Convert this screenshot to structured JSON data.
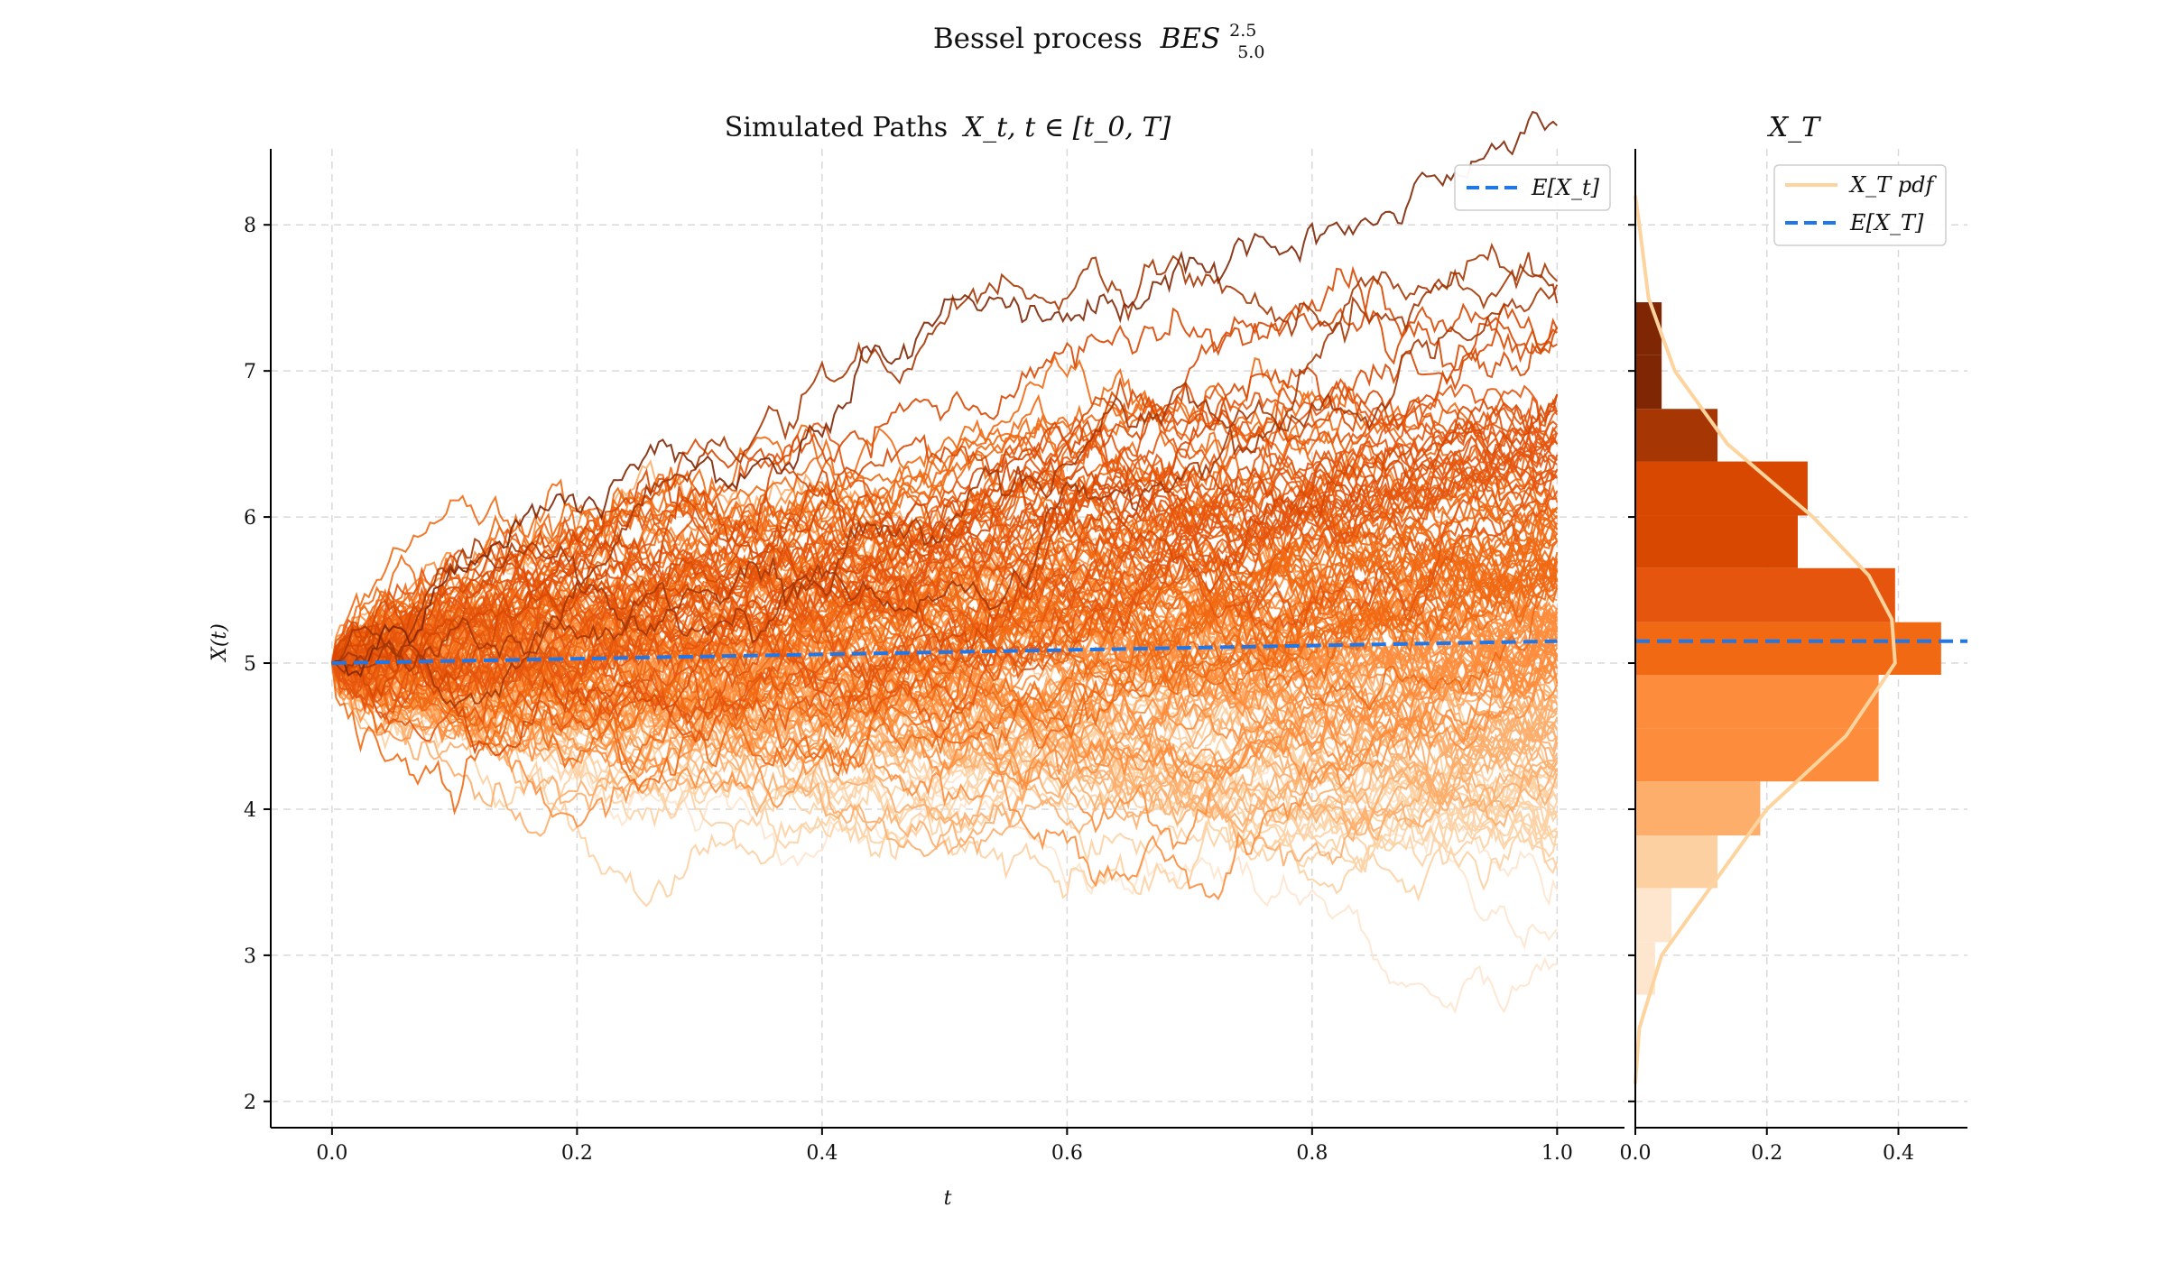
{
  "figure": {
    "suptitle_prefix": "Bessel process",
    "suptitle_math": "BES",
    "suptitle_sup": "2.5",
    "suptitle_sub": "5.0"
  },
  "colors": {
    "mean_line": "#1f77e8",
    "pdf_line": "#fdd49e",
    "grid": "#d9d9d9",
    "path_palette": [
      "#fee6ce",
      "#fdd0a2",
      "#fdae6b",
      "#fd8d3c",
      "#f16913",
      "#e6550d",
      "#d94801",
      "#a63603",
      "#7f2704"
    ]
  },
  "chart_data": [
    {
      "type": "line",
      "panel": "paths",
      "title_text": "Simulated Paths",
      "title_math": "X_t, t ∈ [t_0, T]",
      "xlabel": "t",
      "ylabel": "X(t)",
      "xlim": [
        -0.05,
        1.055
      ],
      "ylim": [
        1.82,
        8.52
      ],
      "xticks": [
        "0.0",
        "0.2",
        "0.4",
        "0.6",
        "0.8",
        "1.0"
      ],
      "yticks": [
        "2",
        "3",
        "4",
        "5",
        "6",
        "7",
        "8"
      ],
      "grid": true,
      "n_paths": 160,
      "dimension": 2.5,
      "initial_value": 5.0,
      "t_range": [
        0.0,
        1.0
      ],
      "expected_value": {
        "name": "E[X_t]",
        "x": [
          0.0,
          1.0
        ],
        "y": [
          5.0,
          5.15
        ]
      },
      "legend": {
        "placement": "upper right",
        "entries": [
          "E[X_t]"
        ]
      }
    },
    {
      "type": "bar",
      "panel": "marginal",
      "orientation": "horizontal",
      "title_math": "X_T",
      "xlim": [
        0.0,
        0.505
      ],
      "ylim": [
        1.82,
        8.52
      ],
      "xticks": [
        "0.0",
        "0.2",
        "0.4"
      ],
      "grid": true,
      "bins": [
        {
          "y0": 2.73,
          "y1": 3.09,
          "density": 0.03
        },
        {
          "y0": 3.09,
          "y1": 3.46,
          "density": 0.055
        },
        {
          "y0": 3.46,
          "y1": 3.82,
          "density": 0.125
        },
        {
          "y0": 3.82,
          "y1": 4.19,
          "density": 0.19
        },
        {
          "y0": 4.19,
          "y1": 4.55,
          "density": 0.37
        },
        {
          "y0": 4.55,
          "y1": 4.92,
          "density": 0.37
        },
        {
          "y0": 4.92,
          "y1": 5.28,
          "density": 0.465
        },
        {
          "y0": 5.28,
          "y1": 5.65,
          "density": 0.395
        },
        {
          "y0": 5.65,
          "y1": 6.01,
          "density": 0.247
        },
        {
          "y0": 6.01,
          "y1": 6.38,
          "density": 0.262
        },
        {
          "y0": 6.38,
          "y1": 6.74,
          "density": 0.125
        },
        {
          "y0": 6.74,
          "y1": 7.11,
          "density": 0.04
        },
        {
          "y0": 7.11,
          "y1": 7.47,
          "density": 0.04
        }
      ],
      "pdf": {
        "name": "X_T pdf",
        "y": [
          2.12,
          2.5,
          3.0,
          3.5,
          4.0,
          4.5,
          5.0,
          5.3,
          5.6,
          6.0,
          6.5,
          7.0,
          7.5,
          8.0,
          8.2
        ],
        "density": [
          0.0,
          0.006,
          0.04,
          0.12,
          0.2,
          0.32,
          0.395,
          0.39,
          0.355,
          0.27,
          0.14,
          0.06,
          0.02,
          0.006,
          0.0
        ]
      },
      "expected_value": {
        "name": "E[X_T]",
        "y": 5.15
      },
      "legend": {
        "placement": "upper right",
        "entries": [
          "X_T pdf",
          "E[X_T]"
        ]
      }
    }
  ]
}
